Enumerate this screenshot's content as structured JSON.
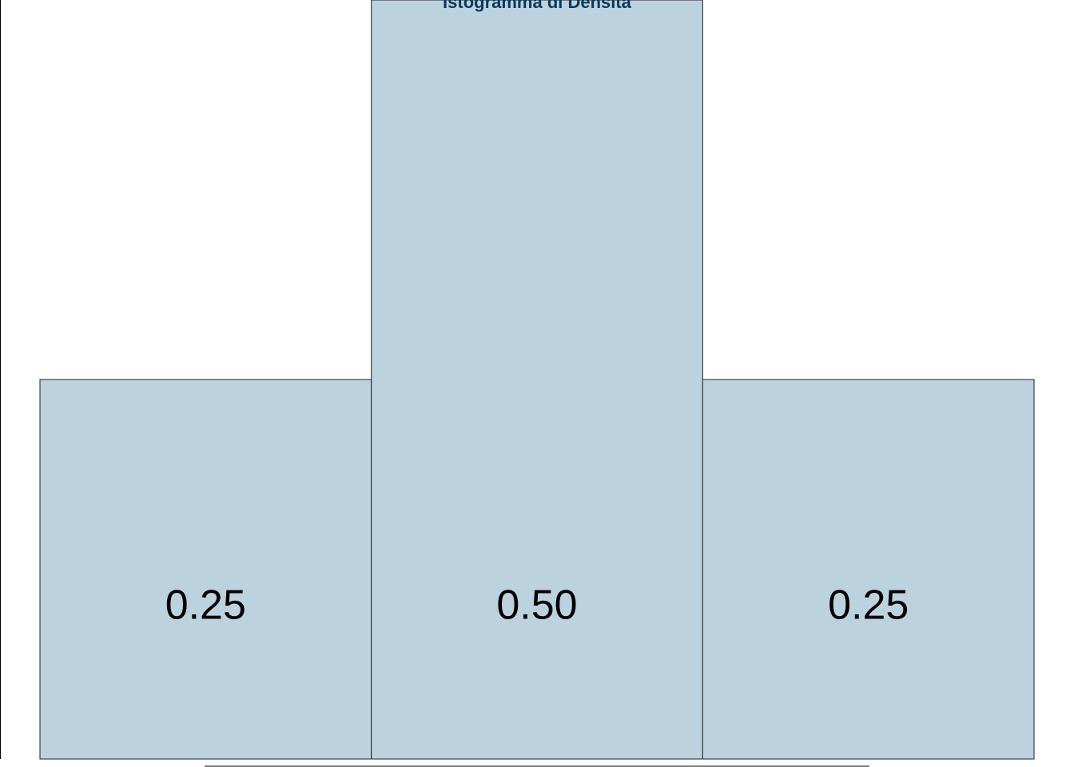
{
  "chart_data": {
    "type": "bar",
    "title": "Istogramma di Densità",
    "categories": [
      "",
      "",
      ""
    ],
    "values": [
      0.25,
      0.5,
      0.25
    ],
    "value_labels": [
      "0.25",
      "0.50",
      "0.25"
    ],
    "xlabel": "",
    "ylabel": "",
    "ylim": [
      0,
      0.5
    ],
    "grid": false,
    "legend": "none"
  },
  "colors": {
    "bar_fill": "#bcd2df",
    "bar_edge": "#222222",
    "title": "#0b3a5c",
    "label": "#000000"
  }
}
